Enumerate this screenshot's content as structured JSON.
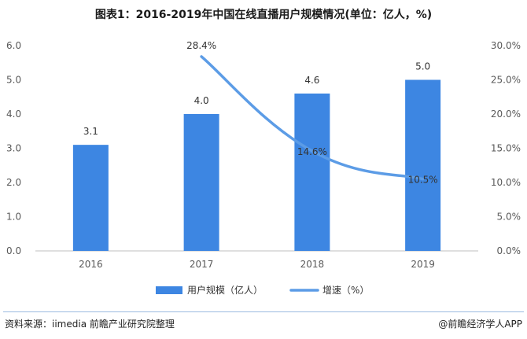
{
  "title": "图表1：2016-2019年中国在线直播用户规模情况(单位：亿人，%)",
  "footer": {
    "source": "资料来源：iimedia 前瞻产业研究院整理",
    "brand": "@前瞻经济学人APP"
  },
  "chart_data": {
    "type": "bar",
    "categories": [
      "2016",
      "2017",
      "2018",
      "2019"
    ],
    "series": [
      {
        "name": "用户规模（亿人）",
        "type": "bar",
        "axis": "left",
        "values": [
          3.1,
          4.0,
          4.6,
          5.0
        ],
        "labels": [
          "3.1",
          "4.0",
          "4.6",
          "5.0"
        ]
      },
      {
        "name": "增速（%）",
        "type": "line",
        "axis": "right",
        "values": [
          null,
          28.4,
          14.6,
          10.5
        ],
        "labels": [
          "",
          "28.4%",
          "14.6%",
          "10.5%"
        ]
      }
    ],
    "y_left": {
      "min": 0,
      "max": 6,
      "ticks": [
        "0.0",
        "1.0",
        "2.0",
        "3.0",
        "4.0",
        "5.0",
        "6.0"
      ]
    },
    "y_right": {
      "min": 0,
      "max": 30,
      "ticks": [
        "0.0%",
        "5.0%",
        "10.0%",
        "15.0%",
        "20.0%",
        "25.0%",
        "30.0%"
      ]
    },
    "legend_position": "bottom",
    "colors": {
      "bar": "#3d86e2",
      "line": "#5c9ce6",
      "axis": "#bfbfbf"
    }
  }
}
